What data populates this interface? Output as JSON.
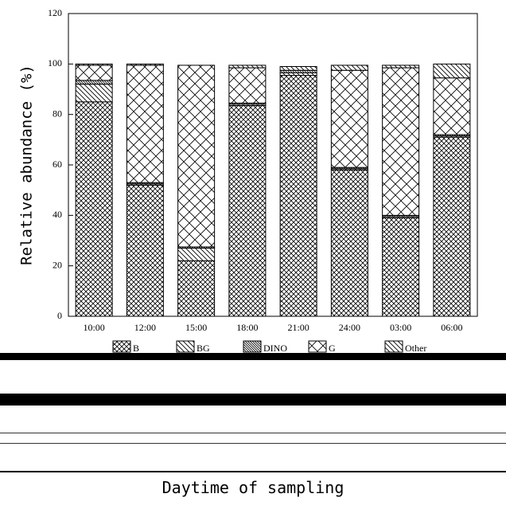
{
  "chart_data": {
    "type": "bar",
    "stacked": true,
    "title": "",
    "ylabel": "Relative abundance (%)",
    "xlabel": "Daytime of sampling",
    "ylim": [
      0,
      120
    ],
    "yticks": [
      0,
      20,
      40,
      60,
      80,
      100,
      120
    ],
    "grid": false,
    "legend_position": "bottom",
    "categories": [
      "10:00",
      "12:00",
      "15:00",
      "18:00",
      "21:00",
      "24:00",
      "03:00",
      "06:00"
    ],
    "series": [
      {
        "name": "B",
        "pattern": "crosshatch-dense",
        "values": [
          85,
          52,
          22,
          83.5,
          95.5,
          58,
          39,
          71
        ]
      },
      {
        "name": "BG",
        "pattern": "diagonal-wide",
        "values": [
          7,
          0.5,
          5,
          0.5,
          1,
          0.5,
          0.5,
          0.5
        ]
      },
      {
        "name": "DINO",
        "pattern": "diagonal-dense",
        "values": [
          1.5,
          0.5,
          0.5,
          0.5,
          1,
          0.5,
          0.5,
          0.5
        ]
      },
      {
        "name": "G",
        "pattern": "crosshatch-wide",
        "values": [
          6,
          46.5,
          72,
          14,
          0,
          38.5,
          58.5,
          22.5
        ]
      },
      {
        "name": "Other",
        "pattern": "diagonal-wide",
        "values": [
          0.5,
          0.5,
          0,
          1,
          1.5,
          2,
          1,
          5.5
        ]
      }
    ]
  }
}
